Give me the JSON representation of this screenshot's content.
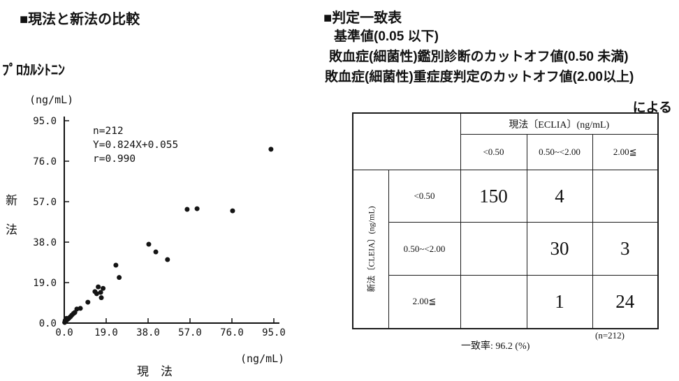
{
  "left": {
    "section_title": "■現法と新法の比較"
  },
  "chart_data": {
    "type": "scatter",
    "title": "ﾌﾟﾛｶﾙｼﾄﾆﾝ",
    "xlabel": "現　法",
    "ylabel": "新法",
    "x_unit": "(ng/mL)",
    "y_unit": "(ng/mL)",
    "xlim": [
      0,
      95
    ],
    "ylim": [
      0,
      95
    ],
    "xticks": [
      "0.0",
      "19.0",
      "38.0",
      "57.0",
      "76.0",
      "95.0"
    ],
    "yticks": [
      "0.0",
      "19.0",
      "38.0",
      "57.0",
      "76.0",
      "95.0"
    ],
    "grid": false,
    "annotations": [
      "n=212",
      "Y=0.824X+0.055",
      "r=0.990"
    ],
    "points": [
      [
        0.2,
        0.3
      ],
      [
        0.5,
        0.7
      ],
      [
        0.8,
        1.1
      ],
      [
        1.2,
        1.5
      ],
      [
        1.7,
        1.9
      ],
      [
        2.2,
        2.4
      ],
      [
        2.8,
        3.0
      ],
      [
        0.4,
        1.2
      ],
      [
        1.0,
        2.2
      ],
      [
        3.4,
        3.7
      ],
      [
        4.2,
        4.5
      ],
      [
        4.8,
        5.0
      ],
      [
        5.7,
        6.6
      ],
      [
        7.3,
        6.9
      ],
      [
        10.7,
        9.8
      ],
      [
        13.9,
        14.8
      ],
      [
        14.7,
        13.8
      ],
      [
        15.4,
        17.0
      ],
      [
        16.5,
        14.4
      ],
      [
        16.8,
        11.9
      ],
      [
        17.6,
        16.3
      ],
      [
        23.4,
        27.2
      ],
      [
        24.9,
        21.4
      ],
      [
        38.3,
        37.0
      ],
      [
        41.5,
        33.4
      ],
      [
        46.8,
        29.8
      ],
      [
        55.7,
        53.4
      ],
      [
        60.2,
        53.7
      ],
      [
        76.3,
        52.7
      ],
      [
        93.7,
        81.6
      ]
    ],
    "point_color": "#141414"
  },
  "right": {
    "section_title": "■判定一致表",
    "criteria_lines": [
      "基準値(0.05 以下)",
      "敗血症(細菌性)鑑別診断のカットオフ値(0.50 未満)",
      "敗血症(細菌性)重症度判定のカットオフ値(2.00以上)"
    ],
    "criteria_suffix": "による",
    "table": {
      "col_group_header": "現法〔ECLIA〕(ng/mL)",
      "col_headers": [
        "<0.50",
        "0.50~<2.00",
        "2.00≦"
      ],
      "row_group_header": "新法〔CLEIA〕(ng/mL)",
      "row_headers": [
        "<0.50",
        "0.50~<2.00",
        "2.00≦"
      ],
      "matrix": [
        [
          "150",
          "4",
          ""
        ],
        [
          "",
          "30",
          "3"
        ],
        [
          "",
          "1",
          "24"
        ]
      ],
      "n_note": "(n=212)",
      "agreement_note": "一致率: 96.2  (%)"
    }
  }
}
